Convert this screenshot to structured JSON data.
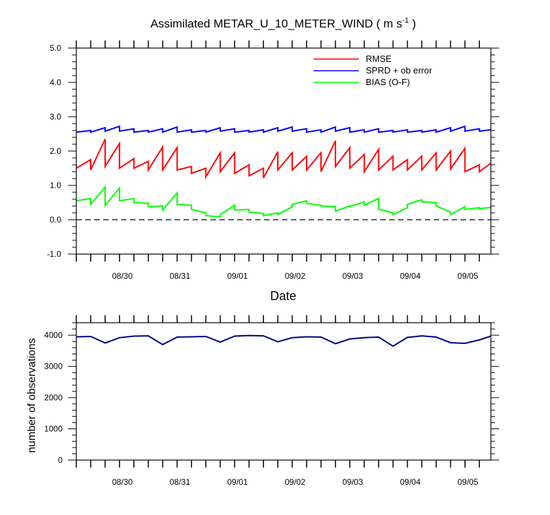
{
  "chart_data": [
    {
      "type": "line",
      "title_main": "Assimilated METAR_U_10_METER_WIND ( m s",
      "title_sup": "-1",
      "title_end": " )",
      "xlabel": "Date",
      "ylabel": "",
      "ylim": [
        -1.0,
        5.0
      ],
      "yticks": [
        "-1.0",
        "0.0",
        "1.0",
        "2.0",
        "3.0",
        "4.0",
        "5.0"
      ],
      "xlim": [
        0,
        7.2
      ],
      "xtick_labels": [
        "08/30",
        "08/31",
        "09/01",
        "09/02",
        "09/03",
        "09/04",
        "09/05"
      ],
      "xtick_positions": [
        0.8,
        1.8,
        2.8,
        3.8,
        4.8,
        5.8,
        6.8
      ],
      "zero_line": "dashed",
      "legend_position": "top-right",
      "series": [
        {
          "name": "RMSE",
          "color": "#ff0000",
          "x": [
            0,
            0.25,
            0.25,
            0.5,
            0.5,
            0.75,
            0.75,
            1.0,
            1.0,
            1.25,
            1.25,
            1.5,
            1.5,
            1.75,
            1.75,
            2.0,
            2.0,
            2.25,
            2.25,
            2.5,
            2.5,
            2.75,
            2.75,
            3.0,
            3.0,
            3.25,
            3.25,
            3.5,
            3.5,
            3.75,
            3.75,
            4.0,
            4.0,
            4.25,
            4.25,
            4.5,
            4.5,
            4.75,
            4.75,
            5.0,
            5.0,
            5.25,
            5.25,
            5.5,
            5.5,
            5.75,
            5.75,
            6.0,
            6.0,
            6.25,
            6.25,
            6.5,
            6.5,
            6.75,
            6.75,
            7.0,
            7.0,
            7.2
          ],
          "y": [
            1.5,
            1.75,
            1.45,
            2.35,
            1.55,
            2.22,
            1.5,
            1.78,
            1.5,
            1.7,
            1.45,
            2.12,
            1.45,
            2.1,
            1.45,
            1.55,
            1.35,
            1.5,
            1.25,
            1.95,
            1.4,
            1.95,
            1.35,
            1.6,
            1.28,
            1.5,
            1.22,
            1.98,
            1.45,
            1.95,
            1.45,
            1.85,
            1.45,
            1.95,
            1.4,
            2.3,
            1.55,
            2.1,
            1.5,
            1.9,
            1.4,
            2.05,
            1.45,
            1.85,
            1.45,
            1.75,
            1.45,
            1.85,
            1.45,
            1.95,
            1.45,
            2.0,
            1.48,
            2.08,
            1.4,
            1.6,
            1.4,
            1.65
          ]
        },
        {
          "name": "SPRD + ob error",
          "color": "#0000ff",
          "x": [
            0,
            0.25,
            0.25,
            0.5,
            0.5,
            0.75,
            0.75,
            1.0,
            1.0,
            1.25,
            1.25,
            1.5,
            1.5,
            1.75,
            1.75,
            2.0,
            2.0,
            2.25,
            2.25,
            2.5,
            2.5,
            2.75,
            2.75,
            3.0,
            3.0,
            3.25,
            3.25,
            3.5,
            3.5,
            3.75,
            3.75,
            4.0,
            4.0,
            4.25,
            4.25,
            4.5,
            4.5,
            4.75,
            4.75,
            5.0,
            5.0,
            5.25,
            5.25,
            5.5,
            5.5,
            5.75,
            5.75,
            6.0,
            6.0,
            6.25,
            6.25,
            6.5,
            6.5,
            6.75,
            6.75,
            7.0,
            7.0,
            7.2
          ],
          "y": [
            2.55,
            2.6,
            2.55,
            2.68,
            2.58,
            2.72,
            2.58,
            2.65,
            2.55,
            2.6,
            2.55,
            2.65,
            2.55,
            2.7,
            2.55,
            2.62,
            2.55,
            2.6,
            2.55,
            2.68,
            2.58,
            2.65,
            2.55,
            2.6,
            2.55,
            2.62,
            2.55,
            2.68,
            2.58,
            2.7,
            2.58,
            2.65,
            2.55,
            2.62,
            2.55,
            2.7,
            2.58,
            2.68,
            2.55,
            2.62,
            2.55,
            2.65,
            2.55,
            2.6,
            2.55,
            2.62,
            2.55,
            2.6,
            2.55,
            2.62,
            2.55,
            2.68,
            2.58,
            2.72,
            2.58,
            2.65,
            2.58,
            2.62
          ]
        },
        {
          "name": "BIAS (O-F)",
          "color": "#00ff00",
          "x": [
            0,
            0.25,
            0.25,
            0.5,
            0.5,
            0.75,
            0.75,
            1.0,
            1.0,
            1.25,
            1.25,
            1.5,
            1.5,
            1.75,
            1.75,
            2.0,
            2.0,
            2.25,
            2.25,
            2.5,
            2.5,
            2.75,
            2.75,
            3.0,
            3.0,
            3.25,
            3.25,
            3.5,
            3.5,
            3.75,
            3.75,
            4.0,
            4.0,
            4.25,
            4.25,
            4.5,
            4.5,
            4.75,
            4.75,
            5.0,
            5.0,
            5.25,
            5.25,
            5.5,
            5.5,
            5.75,
            5.75,
            6.0,
            6.0,
            6.25,
            6.25,
            6.5,
            6.5,
            6.75,
            6.75,
            7.0,
            7.0,
            7.2
          ],
          "y": [
            0.55,
            0.62,
            0.45,
            0.95,
            0.42,
            0.92,
            0.55,
            0.62,
            0.5,
            0.48,
            0.38,
            0.4,
            0.28,
            0.78,
            0.45,
            0.42,
            0.3,
            0.2,
            0.12,
            0.08,
            0.15,
            0.42,
            0.28,
            0.3,
            0.22,
            0.18,
            0.12,
            0.2,
            0.15,
            0.38,
            0.45,
            0.55,
            0.48,
            0.42,
            0.4,
            0.38,
            0.25,
            0.4,
            0.38,
            0.52,
            0.42,
            0.62,
            0.3,
            0.2,
            0.15,
            0.35,
            0.45,
            0.58,
            0.52,
            0.5,
            0.4,
            0.22,
            0.15,
            0.38,
            0.3,
            0.35,
            0.32,
            0.36
          ]
        }
      ]
    },
    {
      "type": "line",
      "title": "",
      "xlabel": "",
      "ylabel": "number of observations",
      "ylim": [
        0,
        4400
      ],
      "yticks": [
        "0",
        "1000",
        "2000",
        "3000",
        "4000"
      ],
      "xlim": [
        0,
        7.2
      ],
      "xtick_labels": [
        "08/30",
        "08/31",
        "09/01",
        "09/02",
        "09/03",
        "09/04",
        "09/05"
      ],
      "xtick_positions": [
        0.8,
        1.8,
        2.8,
        3.8,
        4.8,
        5.8,
        6.8
      ],
      "series": [
        {
          "color": "#000080",
          "x": [
            0,
            0.25,
            0.5,
            0.75,
            1.0,
            1.25,
            1.5,
            1.75,
            2.0,
            2.25,
            2.5,
            2.75,
            3.0,
            3.25,
            3.5,
            3.75,
            4.0,
            4.25,
            4.5,
            4.75,
            5.0,
            5.25,
            5.5,
            5.75,
            6.0,
            6.25,
            6.5,
            6.75,
            7.0,
            7.2
          ],
          "y": [
            3950,
            3960,
            3750,
            3920,
            3970,
            3980,
            3700,
            3940,
            3950,
            3960,
            3780,
            3970,
            3990,
            3980,
            3790,
            3920,
            3950,
            3940,
            3730,
            3880,
            3920,
            3940,
            3650,
            3930,
            3980,
            3940,
            3760,
            3740,
            3850,
            3970
          ]
        }
      ]
    }
  ]
}
